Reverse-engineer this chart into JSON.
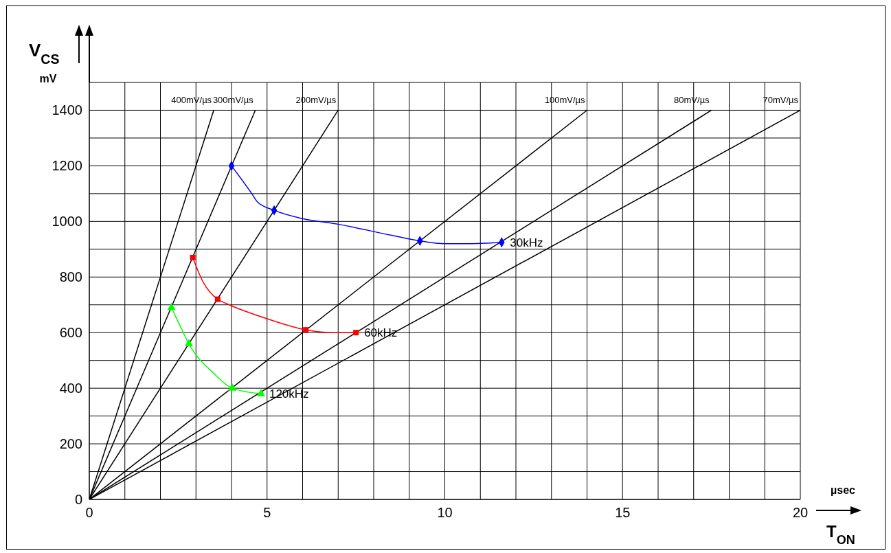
{
  "chart_data": {
    "type": "line",
    "xlabel": "µsec T$_{ON}$",
    "ylabel": "V$_{CS}$ mV",
    "xlim": [
      0,
      20
    ],
    "ylim": [
      0,
      1500
    ],
    "xticks": [
      0,
      {
        "value": 1,
        "label": null
      },
      {
        "value": 2,
        "label": null
      },
      {
        "value": 3,
        "label": null
      },
      {
        "value": 4,
        "label": null
      },
      5,
      {
        "value": 6,
        "label": null
      },
      {
        "value": 7,
        "label": null
      },
      {
        "value": 8,
        "label": null
      },
      {
        "value": 9,
        "label": null
      },
      10,
      {
        "value": 11,
        "label": null
      },
      {
        "value": 12,
        "label": null
      },
      {
        "value": 13,
        "label": null
      },
      {
        "value": 14,
        "label": null
      },
      15,
      {
        "value": 16,
        "label": null
      },
      {
        "value": 17,
        "label": null
      },
      {
        "value": 18,
        "label": null
      },
      {
        "value": 19,
        "label": null
      },
      20
    ],
    "yticks": [
      0,
      {
        "value": 100,
        "label": null
      },
      200,
      {
        "value": 300,
        "label": null
      },
      400,
      {
        "value": 500,
        "label": null
      },
      600,
      {
        "value": 700,
        "label": null
      },
      800,
      {
        "value": 900,
        "label": null
      },
      1000,
      {
        "value": 1100,
        "label": null
      },
      1200,
      {
        "value": 1300,
        "label": null
      },
      1400,
      {
        "value": 1500,
        "label": null
      }
    ],
    "grid": true,
    "series": [
      {
        "type": "line",
        "name": "400mV/µs",
        "color": "#000000",
        "marker": "none",
        "x": [
          0,
          3.5
        ],
        "values": [
          0,
          1400
        ]
      },
      {
        "type": "line",
        "name": "300mV/µs",
        "color": "#000000",
        "marker": "none",
        "x": [
          0,
          4.67
        ],
        "values": [
          0,
          1400
        ]
      },
      {
        "type": "line",
        "name": "200mV/µs",
        "color": "#000000",
        "marker": "none",
        "x": [
          0,
          7
        ],
        "values": [
          0,
          1400
        ]
      },
      {
        "type": "line",
        "name": "100mV/µs",
        "color": "#000000",
        "marker": "none",
        "x": [
          0,
          14
        ],
        "values": [
          0,
          1400
        ]
      },
      {
        "type": "line",
        "name": "80mV/µs",
        "color": "#000000",
        "marker": "none",
        "x": [
          0,
          17.5
        ],
        "values": [
          0,
          1400
        ]
      },
      {
        "type": "line",
        "name": "70mV/µs",
        "color": "#000000",
        "marker": "none",
        "x": [
          0,
          20
        ],
        "values": [
          0,
          1400
        ]
      },
      {
        "type": "line",
        "name": "30kHz",
        "color": "#0000ff",
        "marker": "none",
        "x": [
          4,
          4.57,
          4.73,
          5.2,
          6,
          7,
          8.5,
          9.3,
          10,
          10.6,
          11.6
        ],
        "values": [
          1200,
          1100,
          1070,
          1040,
          1010,
          990,
          950,
          930,
          920,
          920,
          925
        ]
      },
      {
        "type": "scatter",
        "color": "#0000ff",
        "marker": "diamond",
        "x": [
          4,
          5.2,
          9.3,
          11.6
        ],
        "values": [
          1200,
          1040,
          930,
          925
        ]
      },
      {
        "type": "line",
        "name": "60kHz",
        "color": "#ff0000",
        "marker": "none",
        "x": [
          2.91,
          3.21,
          3.61,
          3.85,
          5,
          6.09,
          6.9,
          7.5
        ],
        "values": [
          870,
          780,
          720,
          705,
          650,
          610,
          600,
          600
        ]
      },
      {
        "type": "scatter",
        "color": "#ff0000",
        "marker": "square",
        "x": [
          2.91,
          3.61,
          6.09,
          7.5
        ],
        "values": [
          870,
          720,
          610,
          600
        ]
      },
      {
        "type": "line",
        "name": "120kHz",
        "color": "#00ff00",
        "marker": "none",
        "x": [
          2.31,
          2.57,
          2.8,
          3.53,
          4.02,
          4.83
        ],
        "values": [
          690,
          620,
          560,
          450,
          400,
          380
        ]
      },
      {
        "type": "scatter",
        "color": "#00ff00",
        "marker": "triangle",
        "x": [
          2.31,
          2.8,
          4.02,
          4.83
        ],
        "values": [
          690,
          560,
          400,
          380
        ]
      }
    ]
  }
}
